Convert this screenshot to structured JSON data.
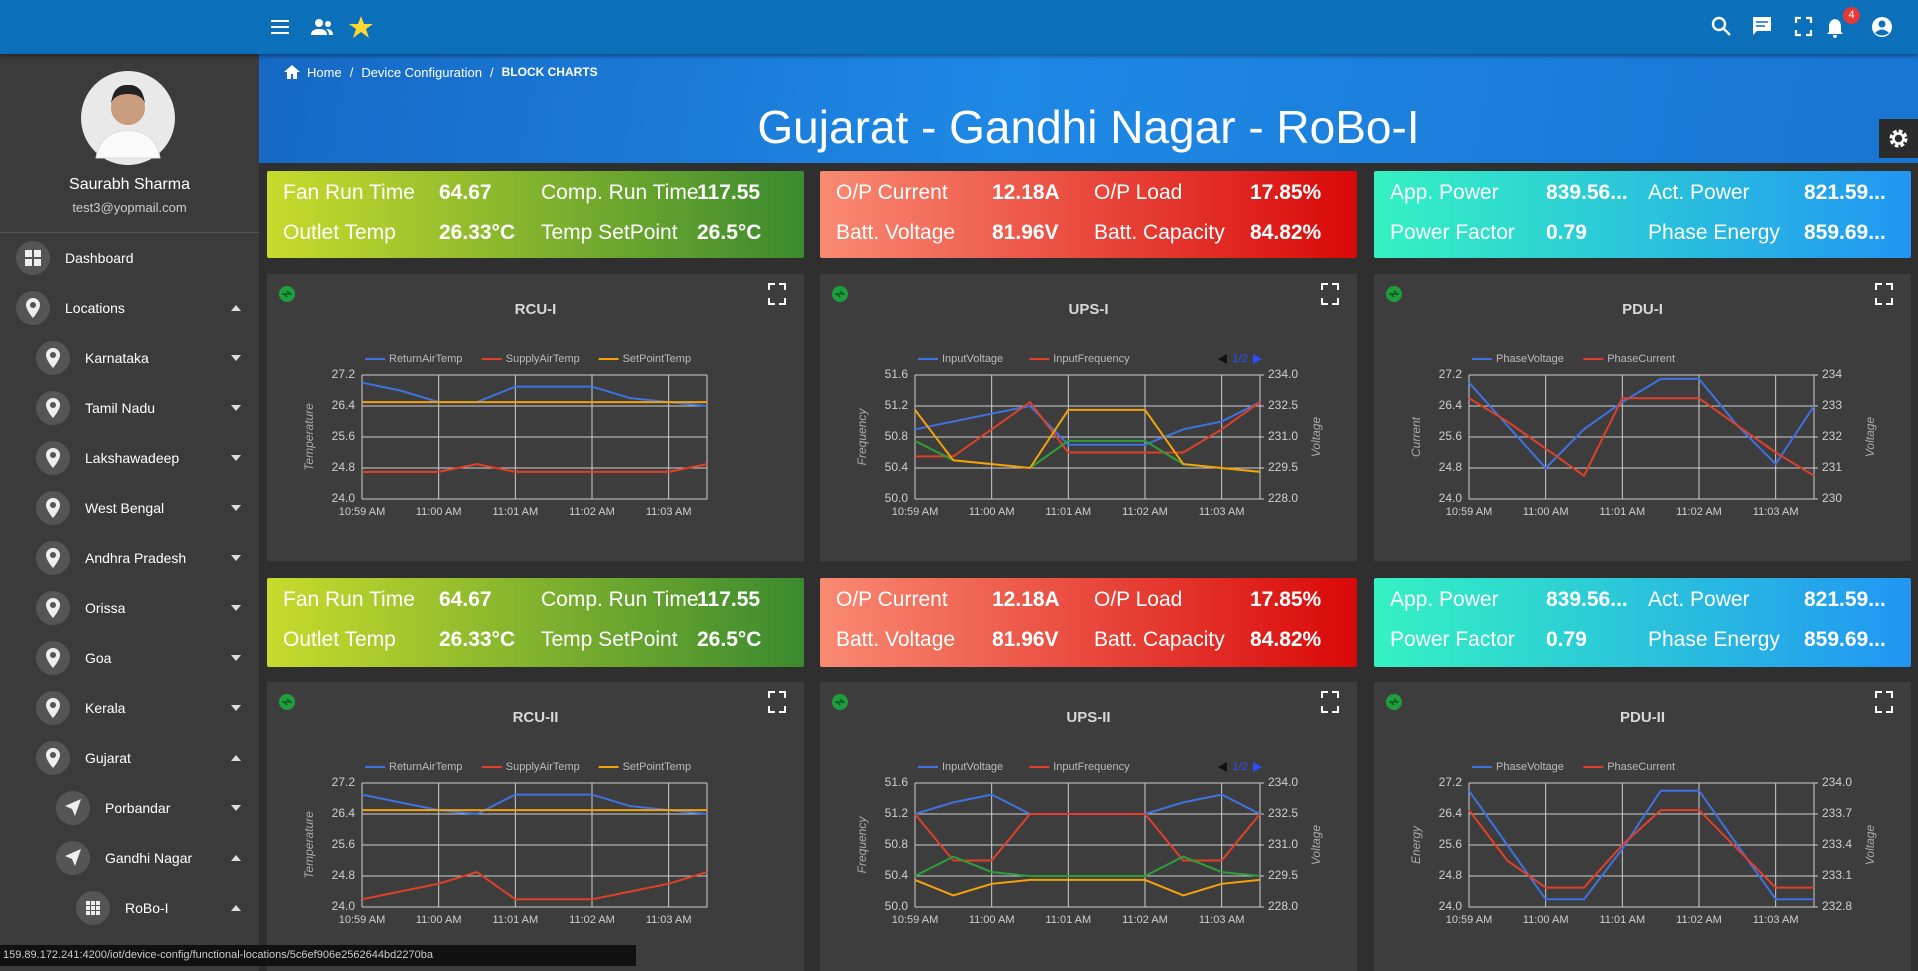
{
  "topbar": {
    "notification_count": 4
  },
  "sidebar": {
    "user_name": "Saurabh Sharma",
    "user_email": "test3@yopmail.com",
    "menu": [
      {
        "label": "Dashboard"
      },
      {
        "label": "Locations",
        "expanded": true,
        "children": [
          {
            "label": "Karnataka",
            "expanded": false
          },
          {
            "label": "Tamil Nadu",
            "expanded": false
          },
          {
            "label": "Lakshawadeep",
            "expanded": false
          },
          {
            "label": "West Bengal",
            "expanded": false
          },
          {
            "label": "Andhra Pradesh",
            "expanded": false
          },
          {
            "label": "Orissa",
            "expanded": false
          },
          {
            "label": "Goa",
            "expanded": false
          },
          {
            "label": "Kerala",
            "expanded": false
          },
          {
            "label": "Gujarat",
            "expanded": true,
            "children": [
              {
                "label": "Porbandar",
                "expanded": false
              },
              {
                "label": "Gandhi Nagar",
                "expanded": true,
                "children": [
                  {
                    "label": "RoBo-I",
                    "expanded": true
                  }
                ]
              }
            ]
          }
        ]
      }
    ]
  },
  "breadcrumb": [
    "Home",
    "Device Configuration",
    "BLOCK CHARTS"
  ],
  "page_title": "Gujarat - Gandhi Nagar - RoBo-I",
  "info_rows": [
    [
      {
        "colors": [
          "#c8db2c",
          "#3b8a2f"
        ],
        "items": [
          {
            "label": "Fan Run Time",
            "value": "64.67"
          },
          {
            "label": "Comp. Run Time",
            "value": "117.55"
          },
          {
            "label": "Outlet Temp",
            "value": "26.33°C"
          },
          {
            "label": "Temp SetPoint",
            "value": "26.5°C"
          }
        ]
      },
      {
        "colors": [
          "#f98a72",
          "#d90808"
        ],
        "items": [
          {
            "label": "O/P Current",
            "value": "12.18A"
          },
          {
            "label": "O/P Load",
            "value": "17.85%"
          },
          {
            "label": "Batt. Voltage",
            "value": "81.96V"
          },
          {
            "label": "Batt. Capacity",
            "value": "84.82%"
          }
        ]
      },
      {
        "colors": [
          "#34f2c2",
          "#2196f3"
        ],
        "items": [
          {
            "label": "App. Power",
            "value": "839.56..."
          },
          {
            "label": "Act. Power",
            "value": "821.59..."
          },
          {
            "label": "Power Factor",
            "value": "0.79"
          },
          {
            "label": "Phase Energy",
            "value": "859.69..."
          }
        ]
      }
    ],
    [
      {
        "colors": [
          "#c8db2c",
          "#3b8a2f"
        ],
        "items": [
          {
            "label": "Fan Run Time",
            "value": "64.67"
          },
          {
            "label": "Comp. Run Time",
            "value": "117.55"
          },
          {
            "label": "Outlet Temp",
            "value": "26.33°C"
          },
          {
            "label": "Temp SetPoint",
            "value": "26.5°C"
          }
        ]
      },
      {
        "colors": [
          "#f98a72",
          "#d90808"
        ],
        "items": [
          {
            "label": "O/P Current",
            "value": "12.18A"
          },
          {
            "label": "O/P Load",
            "value": "17.85%"
          },
          {
            "label": "Batt. Voltage",
            "value": "81.96V"
          },
          {
            "label": "Batt. Capacity",
            "value": "84.82%"
          }
        ]
      },
      {
        "colors": [
          "#34f2c2",
          "#2196f3"
        ],
        "items": [
          {
            "label": "App. Power",
            "value": "839.56..."
          },
          {
            "label": "Act. Power",
            "value": "821.59..."
          },
          {
            "label": "Power Factor",
            "value": "0.79"
          },
          {
            "label": "Phase Energy",
            "value": "859.69..."
          }
        ]
      }
    ]
  ],
  "charts": [
    {
      "type": "line",
      "title": "RCU-I",
      "ylabel": "Temperature",
      "categories": [
        "10:59 AM",
        null,
        "11:00 AM",
        null,
        "11:01 AM",
        null,
        "11:02 AM",
        null,
        "11:03 AM",
        null
      ],
      "ylim": [
        24,
        27.2
      ],
      "yticks": [
        {
          "value": 24,
          "label": "24.0"
        },
        24.8,
        25.6,
        26.4,
        27.2
      ],
      "grid": true,
      "series": [
        {
          "name": "ReturnAirTemp",
          "color": "#3f72e0",
          "values": [
            27.0,
            26.8,
            26.5,
            26.5,
            26.9,
            26.9,
            26.9,
            26.6,
            26.5,
            26.4
          ]
        },
        {
          "name": "SupplyAirTemp",
          "color": "#e0402a",
          "values": [
            24.7,
            24.7,
            24.7,
            24.9,
            24.7,
            24.7,
            24.7,
            24.7,
            24.7,
            24.9
          ]
        },
        {
          "name": "SetPointTemp",
          "color": "#f5a20a",
          "values": [
            26.5,
            26.5,
            26.5,
            26.5,
            26.5,
            26.5,
            26.5,
            26.5,
            26.5,
            26.5
          ]
        }
      ]
    },
    {
      "type": "line",
      "title": "UPS-I",
      "ylabel": "Frequency",
      "y2label": "Voltage",
      "legend_pager": "1/2",
      "categories": [
        "10:59 AM",
        null,
        "11:00 AM",
        null,
        "11:01 AM",
        null,
        "11:02 AM",
        null,
        "11:03 AM",
        null
      ],
      "ylim": [
        50,
        51.6
      ],
      "yticks": [
        {
          "value": 50,
          "label": "50.0"
        },
        50.4,
        50.8,
        51.2,
        51.6
      ],
      "y2lim": [
        228,
        234
      ],
      "y2ticks": [
        {
          "value": 228,
          "label": "228.0"
        },
        229.5,
        {
          "value": 231,
          "label": "231.0"
        },
        232.5,
        {
          "value": 234,
          "label": "234.0"
        }
      ],
      "grid": true,
      "series": [
        {
          "name": "InputVoltage",
          "color": "#3f72e0",
          "values": [
            50.9,
            51.0,
            51.1,
            51.2,
            50.7,
            50.7,
            50.7,
            50.9,
            51.0,
            51.25
          ]
        },
        {
          "name": "InputFrequency",
          "color": "#e0402a",
          "values": [
            50.55,
            50.55,
            50.9,
            51.25,
            50.6,
            50.6,
            50.6,
            50.6,
            50.9,
            51.25
          ]
        },
        {
          "color": "#2e9e3a",
          "values": [
            50.75,
            50.5,
            50.45,
            50.4,
            50.75,
            50.75,
            50.75,
            50.45,
            50.4,
            50.35
          ]
        },
        {
          "color": "#f5a20a",
          "values": [
            51.15,
            50.5,
            50.45,
            50.4,
            51.15,
            51.15,
            51.15,
            50.45,
            50.4,
            50.35
          ]
        }
      ]
    },
    {
      "type": "line",
      "title": "PDU-I",
      "ylabel": "Current",
      "y2label": "Voltage",
      "categories": [
        "10:59 AM",
        null,
        "11:00 AM",
        null,
        "11:01 AM",
        null,
        "11:02 AM",
        null,
        "11:03 AM",
        null
      ],
      "ylim": [
        24,
        27.2
      ],
      "yticks": [
        {
          "value": 24,
          "label": "24.0"
        },
        24.8,
        25.6,
        26.4,
        27.2
      ],
      "y2lim": [
        230,
        234
      ],
      "y2ticks": [
        230,
        231,
        232,
        233,
        234
      ],
      "grid": true,
      "series": [
        {
          "name": "PhaseVoltage",
          "color": "#3f72e0",
          "values": [
            27.0,
            25.9,
            24.8,
            25.8,
            26.5,
            27.1,
            27.1,
            25.9,
            24.9,
            26.4
          ]
        },
        {
          "name": "PhaseCurrent",
          "color": "#e0402a",
          "values": [
            26.6,
            26.0,
            25.3,
            24.6,
            26.6,
            26.6,
            26.6,
            25.9,
            25.2,
            24.6
          ]
        }
      ]
    },
    {
      "type": "line",
      "title": "RCU-II",
      "ylabel": "Temperature",
      "categories": [
        "10:59 AM",
        null,
        "11:00 AM",
        null,
        "11:01 AM",
        null,
        "11:02 AM",
        null,
        "11:03 AM",
        null
      ],
      "ylim": [
        24,
        27.2
      ],
      "yticks": [
        {
          "value": 24,
          "label": "24.0"
        },
        24.8,
        25.6,
        26.4,
        27.2
      ],
      "grid": true,
      "series": [
        {
          "name": "ReturnAirTemp",
          "color": "#3f72e0",
          "values": [
            26.9,
            26.7,
            26.5,
            26.4,
            26.9,
            26.9,
            26.9,
            26.6,
            26.5,
            26.4
          ]
        },
        {
          "name": "SupplyAirTemp",
          "color": "#e0402a",
          "values": [
            24.2,
            24.4,
            24.6,
            24.9,
            24.2,
            24.2,
            24.2,
            24.4,
            24.6,
            24.9
          ]
        },
        {
          "name": "SetPointTemp",
          "color": "#f5a20a",
          "values": [
            26.5,
            26.5,
            26.5,
            26.5,
            26.5,
            26.5,
            26.5,
            26.5,
            26.5,
            26.5
          ]
        }
      ]
    },
    {
      "type": "line",
      "title": "UPS-II",
      "ylabel": "Frequency",
      "y2label": "Voltage",
      "legend_pager": "1/2",
      "categories": [
        "10:59 AM",
        null,
        "11:00 AM",
        null,
        "11:01 AM",
        null,
        "11:02 AM",
        null,
        "11:03 AM",
        null
      ],
      "ylim": [
        50,
        51.6
      ],
      "yticks": [
        {
          "value": 50,
          "label": "50.0"
        },
        50.4,
        50.8,
        51.2,
        51.6
      ],
      "y2lim": [
        228,
        234
      ],
      "y2ticks": [
        {
          "value": 228,
          "label": "228.0"
        },
        229.5,
        {
          "value": 231,
          "label": "231.0"
        },
        232.5,
        {
          "value": 234,
          "label": "234.0"
        }
      ],
      "grid": true,
      "series": [
        {
          "name": "InputVoltage",
          "color": "#3f72e0",
          "values": [
            51.2,
            51.35,
            51.45,
            51.2,
            51.2,
            51.2,
            51.2,
            51.35,
            51.45,
            51.2
          ]
        },
        {
          "name": "InputFrequency",
          "color": "#e0402a",
          "values": [
            51.2,
            50.6,
            50.6,
            51.2,
            51.2,
            51.2,
            51.2,
            50.6,
            50.6,
            51.2
          ]
        },
        {
          "color": "#2e9e3a",
          "values": [
            50.4,
            50.65,
            50.45,
            50.4,
            50.4,
            50.4,
            50.4,
            50.65,
            50.45,
            50.4
          ]
        },
        {
          "color": "#f5a20a",
          "values": [
            50.35,
            50.15,
            50.3,
            50.35,
            50.35,
            50.35,
            50.35,
            50.15,
            50.3,
            50.35
          ]
        }
      ]
    },
    {
      "type": "line",
      "title": "PDU-II",
      "ylabel": "Energy",
      "y2label": "Voltage",
      "categories": [
        "10:59 AM",
        null,
        "11:00 AM",
        null,
        "11:01 AM",
        null,
        "11:02 AM",
        null,
        "11:03 AM",
        null
      ],
      "ylim": [
        24,
        27.2
      ],
      "yticks": [
        {
          "value": 24,
          "label": "24.0"
        },
        24.8,
        25.6,
        26.4,
        27.2
      ],
      "y2lim": [
        232.8,
        234
      ],
      "y2ticks": [
        232.8,
        233.1,
        233.4,
        233.7,
        {
          "value": 234,
          "label": "234.0"
        }
      ],
      "grid": true,
      "series": [
        {
          "name": "PhaseVoltage",
          "color": "#3f72e0",
          "values": [
            27.0,
            25.6,
            24.2,
            24.2,
            25.5,
            27.0,
            27.0,
            25.6,
            24.2,
            24.2
          ]
        },
        {
          "name": "PhaseCurrent",
          "color": "#e0402a",
          "values": [
            26.5,
            25.2,
            24.5,
            24.5,
            25.6,
            26.5,
            26.5,
            25.5,
            24.5,
            24.5
          ]
        }
      ]
    }
  ],
  "status_url": "159.89.172.241:4200/iot/device-config/functional-locations/5c6ef906e2562644bd2270ba"
}
